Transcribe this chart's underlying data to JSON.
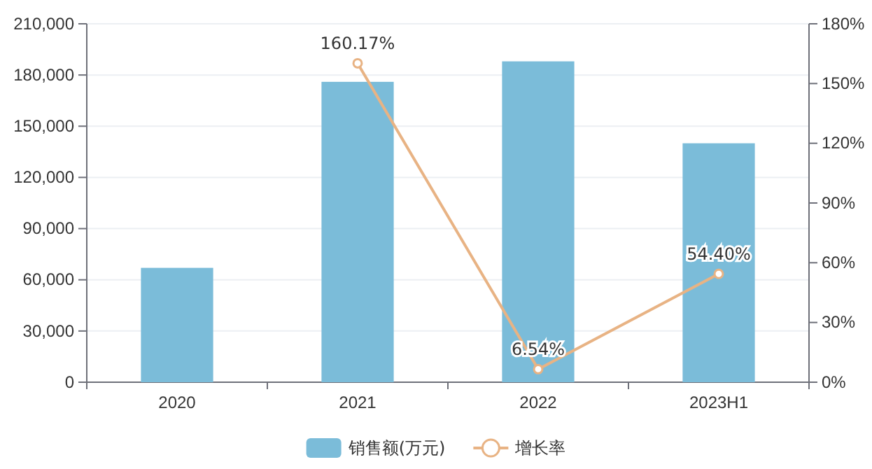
{
  "chart_data": {
    "type": "bar",
    "categories": [
      "2020",
      "2021",
      "2022",
      "2023H1"
    ],
    "series": [
      {
        "name": "销售额(万元)",
        "color": "#7bbcd9",
        "values": [
          67000,
          176000,
          188000,
          140000
        ]
      },
      {
        "name": "增长率",
        "type": "line",
        "axis": "y2",
        "color": "#e8b384",
        "marker": "circle",
        "values": [
          null,
          160.17,
          6.54,
          54.4
        ],
        "value_labels": [
          null,
          "160.17%",
          "6.54%",
          "54.40%"
        ]
      }
    ],
    "ylim": [
      0,
      210000
    ],
    "yticks": [
      {
        "value": 0,
        "label": "0"
      },
      {
        "value": 30000,
        "label": "30,000"
      },
      {
        "value": 60000,
        "label": "60,000"
      },
      {
        "value": 90000,
        "label": "90,000"
      },
      {
        "value": 120000,
        "label": "120,000"
      },
      {
        "value": 150000,
        "label": "150,000"
      },
      {
        "value": 180000,
        "label": "180,000"
      },
      {
        "value": 210000,
        "label": "210,000"
      }
    ],
    "y2lim": [
      0,
      180
    ],
    "y2ticks": [
      {
        "value": 0,
        "label": "0%"
      },
      {
        "value": 30,
        "label": "30%"
      },
      {
        "value": 60,
        "label": "60%"
      },
      {
        "value": 90,
        "label": "90%"
      },
      {
        "value": 120,
        "label": "120%"
      },
      {
        "value": 150,
        "label": "150%"
      },
      {
        "value": 180,
        "label": "180%"
      }
    ],
    "grid": "y",
    "legend": "bottom"
  }
}
